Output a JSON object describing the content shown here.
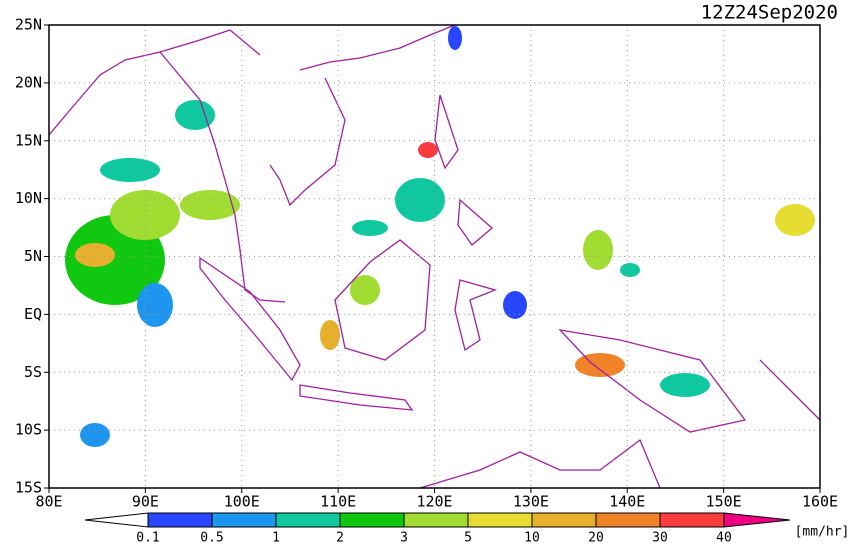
{
  "map": {
    "title": "12Z24Sep2020",
    "lonlim": [
      80,
      160
    ],
    "latlim": [
      -15,
      25
    ],
    "lon_ticks": [
      {
        "value": 80,
        "label": "80E"
      },
      {
        "value": 90,
        "label": "90E"
      },
      {
        "value": 100,
        "label": "100E"
      },
      {
        "value": 110,
        "label": "110E"
      },
      {
        "value": 120,
        "label": "120E"
      },
      {
        "value": 130,
        "label": "130E"
      },
      {
        "value": 140,
        "label": "140E"
      },
      {
        "value": 150,
        "label": "150E"
      },
      {
        "value": 160,
        "label": "160E"
      }
    ],
    "lat_ticks": [
      {
        "value": 25,
        "label": "25N"
      },
      {
        "value": 20,
        "label": "20N"
      },
      {
        "value": 15,
        "label": "15N"
      },
      {
        "value": 10,
        "label": "10N"
      },
      {
        "value": 5,
        "label": "5N"
      },
      {
        "value": 0,
        "label": "EQ"
      },
      {
        "value": -5,
        "label": "5S"
      },
      {
        "value": -10,
        "label": "10S"
      },
      {
        "value": -15,
        "label": "15S"
      }
    ],
    "grid": true,
    "colorbar": {
      "levels": [
        0.1,
        0.5,
        1,
        2,
        3,
        5,
        10,
        20,
        30,
        40
      ],
      "colors": [
        "#ffffff",
        "#2846ff",
        "#1e96f0",
        "#10c8a0",
        "#10c810",
        "#a0dc32",
        "#e6dc32",
        "#e6af2d",
        "#f08228",
        "#fa3c3c",
        "#f00082"
      ],
      "unit": "[mm/hr]"
    }
  }
}
